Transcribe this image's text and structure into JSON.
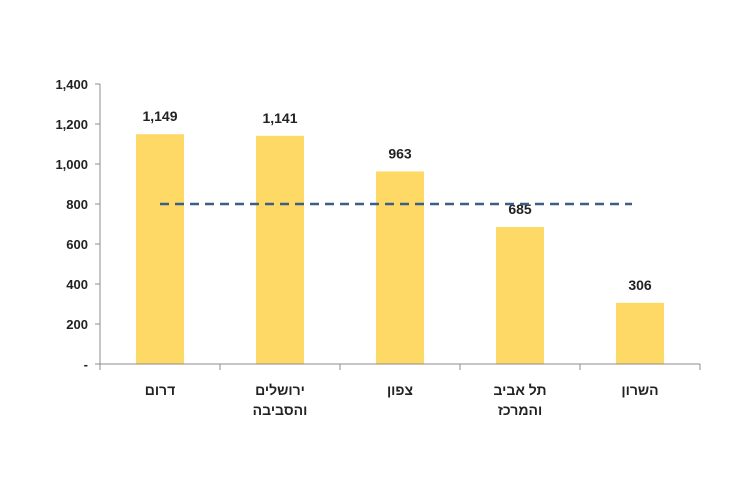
{
  "chart_data": {
    "type": "bar",
    "categories": [
      [
        "דרום"
      ],
      [
        "ירושלים",
        "והסביבה"
      ],
      [
        "צפון"
      ],
      [
        "תל אביב",
        "והמרכז"
      ],
      [
        "השרון"
      ]
    ],
    "values": [
      1149,
      1141,
      963,
      685,
      306
    ],
    "data_labels": [
      "1,149",
      "1,141",
      "963",
      "685",
      "306"
    ],
    "y_ticks": [
      {
        "value": 0,
        "label": "-"
      },
      {
        "value": 200,
        "label": "200"
      },
      {
        "value": 400,
        "label": "400"
      },
      {
        "value": 600,
        "label": "600"
      },
      {
        "value": 800,
        "label": "800"
      },
      {
        "value": 1000,
        "label": "1,000"
      },
      {
        "value": 1200,
        "label": "1,200"
      },
      {
        "value": 1400,
        "label": "1,400"
      }
    ],
    "ylim": [
      0,
      1400
    ],
    "reference_line": {
      "value": 800,
      "style": "dashed",
      "color": "#3E5E87"
    },
    "bar_color": "#FFD966",
    "axis_color": "#8c8c8c",
    "grid": false,
    "legend": "none"
  }
}
